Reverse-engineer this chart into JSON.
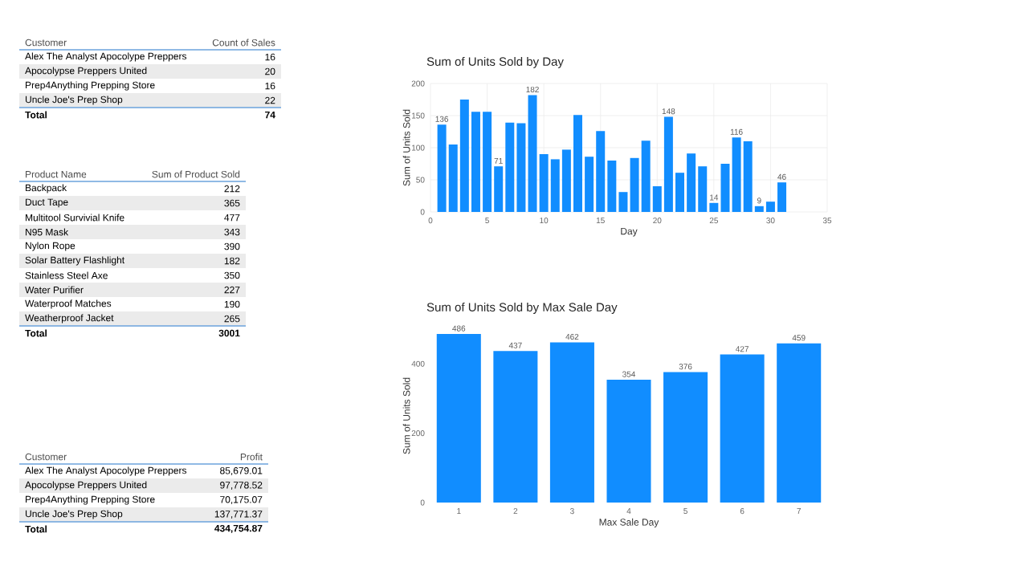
{
  "chart_data": [
    {
      "type": "other",
      "xlabel": "Customer",
      "ylabel": "Count of Sales",
      "categories": [
        "Alex The Analyst Apocolype Preppers",
        "Apocolypse Preppers United",
        "Prep4Anything Prepping Store",
        "Uncle Joe's Prep Shop"
      ],
      "values": [
        16,
        20,
        16,
        22
      ],
      "data_labels": true,
      "annotations": [
        "Total"
      ],
      "totals": [
        "74"
      ]
    },
    {
      "type": "other",
      "xlabel": "Product Name",
      "ylabel": "Sum of Product Sold",
      "categories": [
        "Backpack",
        "Duct Tape",
        "Multitool Survivial Knife",
        "N95 Mask",
        "Nylon Rope",
        "Solar Battery Flashlight",
        "Stainless Steel Axe",
        "Water Purifier",
        "Waterproof Matches",
        "Weatherproof Jacket"
      ],
      "values": [
        212,
        365,
        477,
        343,
        390,
        182,
        350,
        227,
        190,
        265
      ],
      "data_labels": true,
      "annotations": [
        "Total"
      ],
      "totals": [
        "3001"
      ]
    },
    {
      "type": "other",
      "xlabel": "Customer",
      "ylabel": "Profit",
      "categories": [
        "Alex The Analyst Apocolype Preppers",
        "Apocolypse Preppers United",
        "Prep4Anything Prepping Store",
        "Uncle Joe's Prep Shop"
      ],
      "value_labels": [
        "85,679.01",
        "97,778.52",
        "70,175.07",
        "137,771.37"
      ],
      "annotations": [
        "Total"
      ],
      "totals": [
        "434,754.87"
      ]
    },
    {
      "type": "bar",
      "title": "Sum of Units Sold by Day",
      "xlabel": "Day",
      "ylabel": "Sum of Units Sold",
      "color": "#118dff",
      "x": [
        1,
        2,
        3,
        4,
        5,
        6,
        7,
        8,
        9,
        10,
        11,
        12,
        13,
        14,
        15,
        16,
        17,
        18,
        19,
        20,
        21,
        22,
        23,
        24,
        25,
        26,
        27,
        28,
        29,
        30,
        31
      ],
      "values": [
        136,
        105,
        175,
        156,
        156,
        71,
        139,
        138,
        182,
        90,
        82,
        97,
        151,
        86,
        126,
        80,
        31,
        84,
        111,
        40,
        148,
        61,
        91,
        71,
        14,
        75,
        116,
        110,
        9,
        16,
        46
      ],
      "value_labels": [
        "136",
        null,
        null,
        null,
        null,
        "71",
        null,
        null,
        "182",
        null,
        null,
        null,
        null,
        null,
        null,
        null,
        null,
        null,
        null,
        null,
        "148",
        null,
        null,
        null,
        "14",
        null,
        "116",
        null,
        "9",
        null,
        "46"
      ],
      "xlim": [
        0,
        35
      ],
      "xticks": [
        0,
        5,
        10,
        15,
        20,
        25,
        30,
        35
      ],
      "ylim": [
        0,
        200
      ],
      "yticks": [
        0,
        50,
        100,
        150,
        200
      ],
      "grid": true
    },
    {
      "type": "bar",
      "title": "Sum of Units Sold by Max Sale Day",
      "xlabel": "Max Sale Day",
      "ylabel": "Sum of Units Sold",
      "color": "#118dff",
      "categories": [
        "1",
        "2",
        "3",
        "4",
        "5",
        "6",
        "7"
      ],
      "values": [
        486,
        437,
        462,
        354,
        376,
        427,
        459
      ],
      "data_labels": true,
      "ylim": [
        0,
        500
      ],
      "yticks": [
        0,
        200,
        400
      ]
    }
  ]
}
